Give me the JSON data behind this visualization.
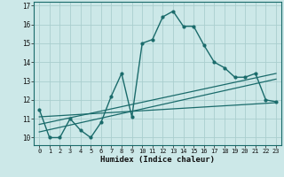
{
  "xlabel": "Humidex (Indice chaleur)",
  "ylabel": "",
  "background_color": "#cce8e8",
  "grid_color": "#aacece",
  "line_color": "#1a6b6b",
  "x_ticks": [
    0,
    1,
    2,
    3,
    4,
    5,
    6,
    7,
    8,
    9,
    10,
    11,
    12,
    13,
    14,
    15,
    16,
    17,
    18,
    19,
    20,
    21,
    22,
    23
  ],
  "y_ticks": [
    10,
    11,
    12,
    13,
    14,
    15,
    16,
    17
  ],
  "ylim": [
    9.6,
    17.2
  ],
  "xlim": [
    -0.5,
    23.5
  ],
  "series": [
    {
      "x": [
        0,
        1,
        2,
        3,
        4,
        5,
        6,
        7,
        8,
        9,
        10,
        11,
        12,
        13,
        14,
        15,
        16,
        17,
        18,
        19,
        20,
        21,
        22,
        23
      ],
      "y": [
        11.5,
        10.0,
        10.0,
        11.0,
        10.4,
        10.0,
        10.8,
        12.2,
        13.4,
        11.1,
        15.0,
        15.2,
        16.4,
        16.7,
        15.9,
        15.9,
        14.9,
        14.0,
        13.7,
        13.2,
        13.2,
        13.4,
        12.0,
        11.9
      ],
      "style": "-o",
      "linewidth": 1.0,
      "markersize": 2.0
    },
    {
      "x": [
        0,
        23
      ],
      "y": [
        10.3,
        13.1
      ],
      "style": "-",
      "linewidth": 0.9,
      "markersize": 0
    },
    {
      "x": [
        0,
        23
      ],
      "y": [
        10.7,
        13.4
      ],
      "style": "-",
      "linewidth": 0.9,
      "markersize": 0
    },
    {
      "x": [
        0,
        23
      ],
      "y": [
        11.1,
        11.85
      ],
      "style": "-",
      "linewidth": 0.9,
      "markersize": 0
    }
  ]
}
